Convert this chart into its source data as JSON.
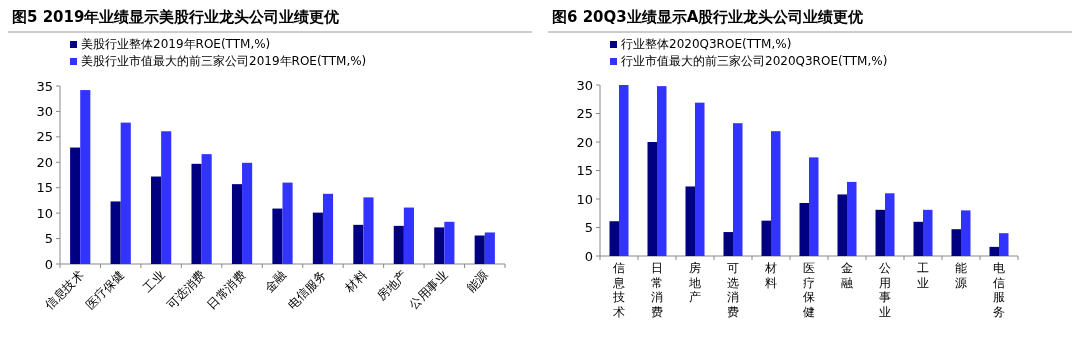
{
  "chart_data": [
    {
      "type": "bar",
      "title": "图5  2019年业绩显示美股行业龙头公司业绩更优",
      "categories": [
        "信息技术",
        "医疗保健",
        "工业",
        "可选消费",
        "日常消费",
        "金融",
        "电信服务",
        "材料",
        "房地产",
        "公用事业",
        "能源"
      ],
      "series": [
        {
          "name": "美股行业整体2019年ROE(TTM,%)",
          "color": "#000080",
          "values": [
            22.9,
            12.3,
            17.2,
            19.7,
            15.7,
            10.9,
            10.1,
            7.7,
            7.5,
            7.2,
            5.6
          ]
        },
        {
          "name": "美股行业市值最大的前三家公司2019年ROE(TTM,%)",
          "color": "#3333ff",
          "values": [
            34.2,
            27.8,
            26.1,
            21.6,
            19.9,
            16.0,
            13.8,
            13.1,
            11.1,
            8.3,
            6.2
          ]
        }
      ],
      "ylim": [
        0,
        35
      ],
      "yticks": [
        0,
        5,
        10,
        15,
        20,
        25,
        30,
        35
      ],
      "legend": "top left"
    },
    {
      "type": "bar",
      "title": "图6  20Q3业绩显示A股行业龙头公司业绩更优",
      "categories": [
        "信息技术",
        "日常消费",
        "房地产",
        "可选消费",
        "材料",
        "医疗保健",
        "金融",
        "公用事业",
        "工业",
        "能源",
        "电信服务"
      ],
      "series": [
        {
          "name": "行业整体2020Q3ROE(TTM,%)",
          "color": "#000080",
          "values": [
            6.1,
            20.0,
            12.2,
            4.2,
            6.2,
            9.3,
            10.8,
            8.1,
            6.0,
            4.7,
            1.6
          ]
        },
        {
          "name": "行业市值最大的前三家公司2020Q3ROE(TTM,%)",
          "color": "#3333ff",
          "values": [
            30.0,
            29.8,
            26.9,
            23.3,
            21.9,
            17.3,
            13.0,
            11.0,
            8.1,
            8.0,
            4.0
          ]
        }
      ],
      "ylim": [
        0,
        30
      ],
      "yticks": [
        0,
        5,
        10,
        15,
        20,
        25,
        30
      ],
      "legend": "top left"
    }
  ]
}
